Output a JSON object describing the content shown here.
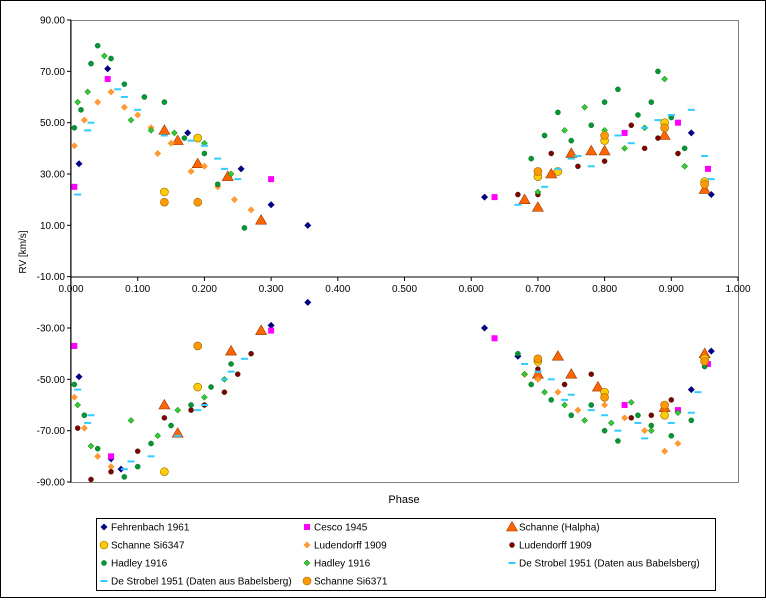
{
  "chart_data": {
    "type": "scatter",
    "title": "",
    "xlabel": "Phase",
    "ylabel": "RV [km/s]",
    "xlim": [
      0,
      1
    ],
    "ylim": [
      -90,
      90
    ],
    "x_ticks": [
      "0.000",
      "0.100",
      "0.200",
      "0.300",
      "0.400",
      "0.500",
      "0.600",
      "0.700",
      "0.800",
      "0.900",
      "1.000"
    ],
    "y_ticks": [
      "90.00",
      "70.00",
      "50.00",
      "30.00",
      "10.00",
      "-10.00",
      "-30.00",
      "-50.00",
      "-70.00",
      "-90.00"
    ],
    "x_tick_values": [
      0,
      0.1,
      0.2,
      0.3,
      0.4,
      0.5,
      0.6,
      0.7,
      0.8,
      0.9,
      1.0
    ],
    "y_tick_values": [
      90,
      70,
      50,
      30,
      10,
      -10,
      -30,
      -50,
      -70,
      -90
    ],
    "grid": false,
    "legend_position": "bottom",
    "series": [
      {
        "name": "Fehrenbach 1961",
        "marker": "diamond",
        "color": "#000080",
        "points": [
          [
            0.012,
            34
          ],
          [
            0.055,
            71
          ],
          [
            0.175,
            46
          ],
          [
            0.255,
            32
          ],
          [
            0.3,
            18
          ],
          [
            0.355,
            10
          ],
          [
            0.62,
            21
          ],
          [
            0.93,
            46
          ],
          [
            0.96,
            22
          ],
          [
            0.012,
            -49
          ],
          [
            0.06,
            -81
          ],
          [
            0.075,
            -85
          ],
          [
            0.3,
            -29
          ],
          [
            0.355,
            -20
          ],
          [
            0.62,
            -30
          ],
          [
            0.67,
            -41
          ],
          [
            0.93,
            -54
          ],
          [
            0.96,
            -39
          ]
        ]
      },
      {
        "name": "Cesco 1945",
        "marker": "square",
        "color": "#ff00ff",
        "points": [
          [
            0.005,
            25
          ],
          [
            0.055,
            67
          ],
          [
            0.3,
            28
          ],
          [
            0.635,
            21
          ],
          [
            0.83,
            46
          ],
          [
            0.91,
            50
          ],
          [
            0.955,
            32
          ],
          [
            0.005,
            -37
          ],
          [
            0.06,
            -80
          ],
          [
            0.3,
            -31
          ],
          [
            0.635,
            -34
          ],
          [
            0.83,
            -60
          ],
          [
            0.91,
            -62
          ],
          [
            0.955,
            -44
          ]
        ]
      },
      {
        "name": "Schanne (Halpha)",
        "marker": "triangle",
        "color": "#ff6600",
        "points": [
          [
            0.14,
            47
          ],
          [
            0.16,
            43
          ],
          [
            0.19,
            34
          ],
          [
            0.235,
            29
          ],
          [
            0.285,
            12
          ],
          [
            0.68,
            20
          ],
          [
            0.7,
            17
          ],
          [
            0.72,
            30
          ],
          [
            0.75,
            38
          ],
          [
            0.78,
            39
          ],
          [
            0.8,
            39
          ],
          [
            0.89,
            45
          ],
          [
            0.95,
            24
          ],
          [
            0.14,
            -60
          ],
          [
            0.16,
            -71
          ],
          [
            0.24,
            -39
          ],
          [
            0.285,
            -31
          ],
          [
            0.7,
            -48
          ],
          [
            0.73,
            -41
          ],
          [
            0.75,
            -48
          ],
          [
            0.79,
            -53
          ],
          [
            0.89,
            -61
          ],
          [
            0.95,
            -40
          ]
        ]
      },
      {
        "name": "Schanne Si6347",
        "marker": "circle",
        "color": "#ffcc00",
        "points": [
          [
            0.14,
            23
          ],
          [
            0.19,
            44
          ],
          [
            0.7,
            29
          ],
          [
            0.73,
            31
          ],
          [
            0.8,
            43
          ],
          [
            0.89,
            50
          ],
          [
            0.95,
            27
          ],
          [
            0.14,
            -86
          ],
          [
            0.19,
            -53
          ],
          [
            0.7,
            -43
          ],
          [
            0.8,
            -55
          ],
          [
            0.89,
            -64
          ],
          [
            0.95,
            -42
          ]
        ]
      },
      {
        "name": "Ludendorff 1909",
        "marker": "diamond",
        "color": "#ff9933",
        "points": [
          [
            0.005,
            41
          ],
          [
            0.02,
            51
          ],
          [
            0.04,
            58
          ],
          [
            0.06,
            62
          ],
          [
            0.08,
            56
          ],
          [
            0.1,
            53
          ],
          [
            0.12,
            48
          ],
          [
            0.13,
            38
          ],
          [
            0.15,
            42
          ],
          [
            0.18,
            31
          ],
          [
            0.2,
            33
          ],
          [
            0.22,
            25
          ],
          [
            0.245,
            20
          ],
          [
            0.27,
            16
          ],
          [
            0.005,
            -57
          ],
          [
            0.02,
            -69
          ],
          [
            0.04,
            -80
          ],
          [
            0.06,
            -84
          ],
          [
            0.68,
            -48
          ],
          [
            0.7,
            -50
          ],
          [
            0.73,
            -55
          ],
          [
            0.76,
            -62
          ],
          [
            0.8,
            -60
          ],
          [
            0.83,
            -65
          ],
          [
            0.86,
            -70
          ],
          [
            0.89,
            -78
          ],
          [
            0.91,
            -75
          ]
        ]
      },
      {
        "name": "Ludendorff 1909 ",
        "marker": "circle-small",
        "color": "#800000",
        "points": [
          [
            0.67,
            22
          ],
          [
            0.7,
            22
          ],
          [
            0.72,
            38
          ],
          [
            0.76,
            33
          ],
          [
            0.8,
            35
          ],
          [
            0.84,
            49
          ],
          [
            0.86,
            40
          ],
          [
            0.88,
            44
          ],
          [
            0.91,
            38
          ],
          [
            0.01,
            -69
          ],
          [
            0.03,
            -89
          ],
          [
            0.06,
            -86
          ],
          [
            0.1,
            -78
          ],
          [
            0.14,
            -65
          ],
          [
            0.18,
            -62
          ],
          [
            0.2,
            -60
          ],
          [
            0.23,
            -55
          ],
          [
            0.25,
            -48
          ],
          [
            0.27,
            -40
          ],
          [
            0.7,
            -46
          ],
          [
            0.74,
            -52
          ],
          [
            0.78,
            -48
          ],
          [
            0.84,
            -65
          ],
          [
            0.87,
            -64
          ],
          [
            0.9,
            -58
          ]
        ]
      },
      {
        "name": "Hadley 1916",
        "marker": "circle-small",
        "color": "#009933",
        "points": [
          [
            0.005,
            48
          ],
          [
            0.015,
            55
          ],
          [
            0.03,
            73
          ],
          [
            0.04,
            80
          ],
          [
            0.06,
            75
          ],
          [
            0.08,
            65
          ],
          [
            0.11,
            60
          ],
          [
            0.14,
            58
          ],
          [
            0.17,
            44
          ],
          [
            0.2,
            38
          ],
          [
            0.22,
            26
          ],
          [
            0.26,
            9
          ],
          [
            0.69,
            36
          ],
          [
            0.71,
            45
          ],
          [
            0.73,
            54
          ],
          [
            0.75,
            43
          ],
          [
            0.78,
            49
          ],
          [
            0.8,
            58
          ],
          [
            0.82,
            63
          ],
          [
            0.85,
            53
          ],
          [
            0.87,
            58
          ],
          [
            0.88,
            70
          ],
          [
            0.9,
            52
          ],
          [
            0.92,
            40
          ],
          [
            0.005,
            -52
          ],
          [
            0.02,
            -64
          ],
          [
            0.04,
            -77
          ],
          [
            0.08,
            -88
          ],
          [
            0.1,
            -84
          ],
          [
            0.12,
            -75
          ],
          [
            0.15,
            -68
          ],
          [
            0.18,
            -60
          ],
          [
            0.21,
            -53
          ],
          [
            0.24,
            -44
          ],
          [
            0.67,
            -40
          ],
          [
            0.69,
            -52
          ],
          [
            0.72,
            -58
          ],
          [
            0.75,
            -64
          ],
          [
            0.78,
            -60
          ],
          [
            0.8,
            -70
          ],
          [
            0.82,
            -74
          ],
          [
            0.85,
            -64
          ],
          [
            0.87,
            -68
          ],
          [
            0.9,
            -72
          ],
          [
            0.93,
            -66
          ],
          [
            0.95,
            -45
          ]
        ]
      },
      {
        "name": "Hadley 1916 ",
        "marker": "diamond-small",
        "color": "#33cc33",
        "points": [
          [
            0.01,
            58
          ],
          [
            0.025,
            62
          ],
          [
            0.05,
            76
          ],
          [
            0.09,
            51
          ],
          [
            0.12,
            47
          ],
          [
            0.155,
            46
          ],
          [
            0.2,
            42
          ],
          [
            0.24,
            30
          ],
          [
            0.7,
            23
          ],
          [
            0.74,
            47
          ],
          [
            0.77,
            56
          ],
          [
            0.8,
            47
          ],
          [
            0.83,
            40
          ],
          [
            0.86,
            48
          ],
          [
            0.89,
            67
          ],
          [
            0.92,
            33
          ],
          [
            0.01,
            -60
          ],
          [
            0.03,
            -76
          ],
          [
            0.09,
            -66
          ],
          [
            0.13,
            -72
          ],
          [
            0.16,
            -62
          ],
          [
            0.2,
            -57
          ],
          [
            0.23,
            -50
          ],
          [
            0.68,
            -48
          ],
          [
            0.71,
            -55
          ],
          [
            0.74,
            -60
          ],
          [
            0.77,
            -66
          ],
          [
            0.81,
            -67
          ],
          [
            0.84,
            -59
          ],
          [
            0.87,
            -70
          ],
          [
            0.91,
            -63
          ]
        ]
      },
      {
        "name": "De Strobel 1951 (Daten aus Babelsberg)",
        "marker": "dash",
        "color": "#33ccff",
        "points": [
          [
            0.01,
            22
          ],
          [
            0.03,
            50
          ],
          [
            0.07,
            63
          ],
          [
            0.1,
            55
          ],
          [
            0.14,
            45
          ],
          [
            0.18,
            43
          ],
          [
            0.22,
            36
          ],
          [
            0.25,
            28
          ],
          [
            0.67,
            18
          ],
          [
            0.71,
            25
          ],
          [
            0.75,
            36
          ],
          [
            0.78,
            33
          ],
          [
            0.82,
            45
          ],
          [
            0.86,
            48
          ],
          [
            0.9,
            53
          ],
          [
            0.93,
            55
          ],
          [
            0.96,
            28
          ],
          [
            0.01,
            -54
          ],
          [
            0.03,
            -64
          ],
          [
            0.08,
            -85
          ],
          [
            0.12,
            -80
          ],
          [
            0.16,
            -72
          ],
          [
            0.2,
            -60
          ],
          [
            0.23,
            -50
          ],
          [
            0.26,
            -42
          ],
          [
            0.68,
            -44
          ],
          [
            0.72,
            -50
          ],
          [
            0.75,
            -56
          ],
          [
            0.78,
            -62
          ],
          [
            0.82,
            -70
          ],
          [
            0.86,
            -73
          ],
          [
            0.9,
            -67
          ],
          [
            0.94,
            -55
          ]
        ]
      },
      {
        "name": "De Strobel 1951 (Daten aus Babelsberg) ",
        "marker": "dash",
        "color": "#33ccff",
        "points": [
          [
            0.025,
            47
          ],
          [
            0.08,
            60
          ],
          [
            0.2,
            41
          ],
          [
            0.23,
            32
          ],
          [
            0.73,
            32
          ],
          [
            0.76,
            37
          ],
          [
            0.84,
            42
          ],
          [
            0.88,
            51
          ],
          [
            0.95,
            37
          ],
          [
            0.025,
            -67
          ],
          [
            0.09,
            -82
          ],
          [
            0.19,
            -62
          ],
          [
            0.24,
            -47
          ],
          [
            0.7,
            -47
          ],
          [
            0.74,
            -58
          ],
          [
            0.8,
            -64
          ],
          [
            0.85,
            -67
          ],
          [
            0.93,
            -63
          ]
        ]
      },
      {
        "name": "Schanne Si6371",
        "marker": "circle",
        "color": "#ff9900",
        "points": [
          [
            0.14,
            19
          ],
          [
            0.19,
            19
          ],
          [
            0.7,
            31
          ],
          [
            0.8,
            45
          ],
          [
            0.89,
            48
          ],
          [
            0.95,
            26
          ],
          [
            0.19,
            -37
          ],
          [
            0.7,
            -42
          ],
          [
            0.8,
            -57
          ],
          [
            0.89,
            -60
          ],
          [
            0.95,
            -43
          ]
        ]
      }
    ],
    "legend": [
      {
        "label": "Fehrenbach 1961",
        "marker": "diamond",
        "color": "#000080"
      },
      {
        "label": "Cesco 1945",
        "marker": "square",
        "color": "#ff00ff"
      },
      {
        "label": "Schanne (Halpha)",
        "marker": "triangle",
        "color": "#ff6600"
      },
      {
        "label": "Schanne Si6347",
        "marker": "circle",
        "color": "#ffcc00"
      },
      {
        "label": "Ludendorff 1909",
        "marker": "diamond",
        "color": "#ff9933"
      },
      {
        "label": "Ludendorff 1909",
        "marker": "circle-small",
        "color": "#800000"
      },
      {
        "label": "Hadley 1916",
        "marker": "circle-small",
        "color": "#009933"
      },
      {
        "label": "Hadley 1916",
        "marker": "diamond-small",
        "color": "#33cc33"
      },
      {
        "label": "De Strobel 1951 (Daten aus Babelsberg)",
        "marker": "dash",
        "color": "#33ccff"
      },
      {
        "label": "De Strobel 1951 (Daten aus Babelsberg)",
        "marker": "dash",
        "color": "#33ccff"
      },
      {
        "label": "Schanne Si6371",
        "marker": "circle",
        "color": "#ff9900"
      }
    ]
  }
}
